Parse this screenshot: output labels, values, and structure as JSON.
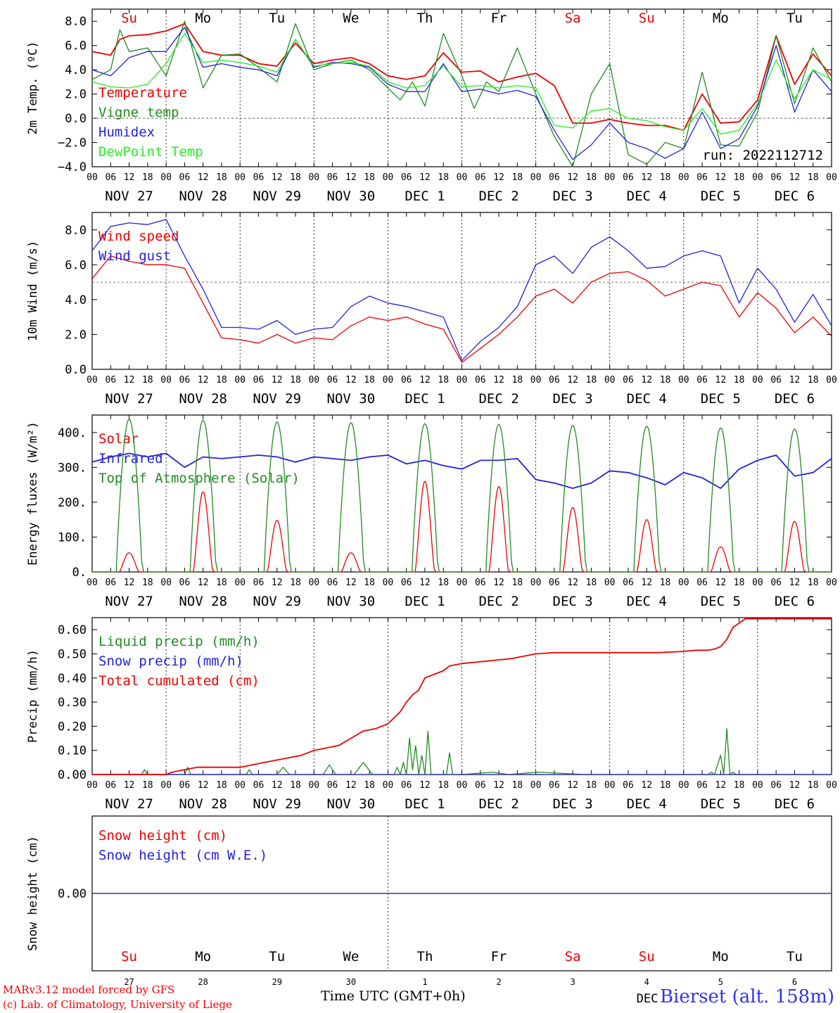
{
  "run_label": "run: 2022112712",
  "footer": {
    "model_line": "MARv3.12 model forced by GFS",
    "lab_line": "(c) Lab. of Climatology, University of Liege",
    "time_axis": "Time UTC (GMT+0h)",
    "station": "Bierset (alt. 158m)",
    "month_label": "DEC"
  },
  "day_labels": [
    {
      "name": "Su",
      "color": "#ee0000"
    },
    {
      "name": "Mo",
      "color": "#000000"
    },
    {
      "name": "Tu",
      "color": "#000000"
    },
    {
      "name": "We",
      "color": "#000000"
    },
    {
      "name": "Th",
      "color": "#000000"
    },
    {
      "name": "Fr",
      "color": "#000000"
    },
    {
      "name": "Sa",
      "color": "#ee0000"
    },
    {
      "name": "Su",
      "color": "#ee0000"
    },
    {
      "name": "Mo",
      "color": "#000000"
    },
    {
      "name": "Tu",
      "color": "#000000"
    }
  ],
  "date_labels": [
    "NOV 27",
    "NOV 28",
    "NOV 29",
    "NOV 30",
    "DEC  1",
    "DEC  2",
    "DEC  3",
    "DEC  4",
    "DEC  5",
    "DEC  6"
  ],
  "day_numbers": [
    "27",
    "28",
    "29",
    "30",
    "1",
    "2",
    "3",
    "4",
    "5",
    "6"
  ],
  "hour_ticks": [
    "00",
    "06",
    "12",
    "18"
  ],
  "chart_data": [
    {
      "type": "line",
      "ylabel": "2m Temp. (ºC)",
      "ylim": [
        -4,
        9
      ],
      "yticks": [
        "8.0",
        "6.0",
        "4.0",
        "2.0",
        "0.0",
        "−2.0",
        "−4.0"
      ],
      "ytick_values": [
        8,
        6,
        4,
        2,
        0,
        -2,
        -4
      ],
      "ref_line": 0,
      "x_hours_range": [
        0,
        240
      ],
      "series": [
        {
          "name": "Temperature",
          "color": "#ee0000",
          "x": [
            0,
            6,
            9,
            12,
            18,
            24,
            30,
            36,
            42,
            48,
            54,
            60,
            66,
            72,
            78,
            84,
            90,
            96,
            102,
            108,
            114,
            120,
            126,
            132,
            138,
            144,
            150,
            156,
            162,
            168,
            174,
            180,
            186,
            192,
            198,
            204,
            210,
            216,
            222,
            228,
            234,
            240
          ],
          "y": [
            5.5,
            5.2,
            6.5,
            6.8,
            6.9,
            7.2,
            7.8,
            5.5,
            5.2,
            5.2,
            4.5,
            4.3,
            6.2,
            4.5,
            4.8,
            5.0,
            4.5,
            3.5,
            3.2,
            3.5,
            5.4,
            3.8,
            3.9,
            3.0,
            3.4,
            3.7,
            2.7,
            -0.4,
            -0.4,
            -0.1,
            -0.4,
            -0.6,
            -0.6,
            -1.0,
            2.0,
            -0.4,
            -0.3,
            1.5,
            6.8,
            2.8,
            5.3,
            3.5
          ]
        },
        {
          "name": "Vigne temp",
          "color": "#228b22",
          "x": [
            0,
            6,
            9,
            12,
            18,
            24,
            30,
            36,
            42,
            48,
            54,
            60,
            66,
            72,
            78,
            84,
            90,
            96,
            100,
            104,
            108,
            114,
            120,
            124,
            128,
            132,
            138,
            144,
            150,
            156,
            162,
            168,
            174,
            180,
            186,
            192,
            198,
            204,
            210,
            216,
            222,
            228,
            234,
            240
          ],
          "y": [
            3.2,
            4.0,
            7.3,
            5.5,
            5.8,
            3.5,
            8.0,
            2.5,
            5.2,
            5.3,
            4.2,
            3.0,
            7.8,
            4.0,
            4.5,
            4.8,
            4.0,
            2.5,
            1.5,
            3.0,
            1.0,
            7.0,
            3.5,
            0.8,
            3.0,
            2.2,
            5.8,
            2.0,
            -1.5,
            -4.0,
            2.0,
            4.5,
            -3.0,
            -3.8,
            -2.0,
            -2.5,
            3.8,
            -2.2,
            -2.3,
            0.5,
            6.8,
            1.2,
            5.8,
            3.0
          ]
        },
        {
          "name": "Humidex",
          "color": "#2222dd",
          "x": [
            0,
            6,
            12,
            18,
            24,
            30,
            36,
            42,
            48,
            54,
            60,
            66,
            72,
            78,
            84,
            90,
            96,
            102,
            108,
            114,
            120,
            126,
            132,
            138,
            144,
            150,
            156,
            162,
            168,
            174,
            180,
            186,
            192,
            198,
            204,
            210,
            216,
            222,
            228,
            234,
            240
          ],
          "y": [
            4.0,
            3.5,
            5.0,
            5.5,
            5.5,
            7.5,
            4.2,
            4.5,
            4.2,
            4.0,
            3.5,
            6.5,
            4.2,
            4.6,
            4.5,
            4.2,
            2.8,
            2.2,
            2.2,
            4.5,
            2.2,
            2.4,
            2.0,
            2.3,
            1.8,
            -1.0,
            -3.4,
            -2.2,
            -0.4,
            -2.0,
            -2.5,
            -3.3,
            -2.5,
            0.5,
            -2.5,
            -1.7,
            1.0,
            6.0,
            0.5,
            4.0,
            2.2
          ]
        },
        {
          "name": "DewPoint Temp",
          "color": "#22ee22",
          "x": [
            0,
            6,
            12,
            18,
            24,
            30,
            36,
            42,
            48,
            54,
            60,
            66,
            72,
            78,
            84,
            90,
            96,
            102,
            108,
            114,
            120,
            126,
            132,
            138,
            144,
            150,
            156,
            162,
            168,
            174,
            180,
            186,
            192,
            198,
            204,
            210,
            216,
            222,
            228,
            234,
            240
          ],
          "y": [
            3.0,
            2.6,
            2.5,
            2.8,
            4.5,
            7.0,
            4.6,
            4.8,
            4.6,
            4.3,
            3.8,
            6.5,
            4.3,
            4.5,
            4.6,
            4.3,
            3.0,
            2.5,
            2.7,
            4.3,
            2.6,
            2.7,
            2.5,
            2.7,
            2.5,
            -0.6,
            -0.8,
            0.6,
            0.8,
            0.0,
            -0.2,
            -0.7,
            -1.0,
            0.8,
            -1.3,
            -1.0,
            1.2,
            4.8,
            1.6,
            4.0,
            3.2
          ]
        }
      ]
    },
    {
      "type": "line",
      "ylabel": "10m Wind (m/s)",
      "ylim": [
        0,
        9
      ],
      "yticks": [
        "8.0",
        "6.0",
        "4.0",
        "2.0",
        "0.0"
      ],
      "ytick_values": [
        8,
        6,
        4,
        2,
        0
      ],
      "ref_line": 5,
      "x_hours_range": [
        0,
        240
      ],
      "series": [
        {
          "name": "Wind speed",
          "color": "#ee0000",
          "x": [
            0,
            6,
            12,
            18,
            24,
            30,
            36,
            42,
            48,
            54,
            60,
            66,
            72,
            78,
            84,
            90,
            96,
            102,
            108,
            114,
            120,
            126,
            132,
            138,
            144,
            150,
            156,
            162,
            168,
            174,
            180,
            186,
            192,
            198,
            204,
            210,
            216,
            222,
            228,
            234,
            240
          ],
          "y": [
            5.2,
            6.5,
            6.2,
            6.0,
            6.0,
            5.8,
            3.8,
            1.8,
            1.7,
            1.5,
            2.0,
            1.5,
            1.8,
            1.7,
            2.5,
            3.0,
            2.8,
            3.0,
            2.6,
            2.3,
            0.4,
            1.2,
            2.0,
            3.0,
            4.2,
            4.6,
            3.8,
            5.0,
            5.5,
            5.6,
            5.1,
            4.2,
            4.6,
            5.0,
            4.8,
            3.0,
            4.4,
            3.5,
            2.1,
            3.0,
            1.9
          ]
        },
        {
          "name": "Wind gust",
          "color": "#2222dd",
          "x": [
            0,
            6,
            12,
            18,
            24,
            30,
            36,
            42,
            48,
            54,
            60,
            66,
            72,
            78,
            84,
            90,
            96,
            102,
            108,
            114,
            120,
            126,
            132,
            138,
            144,
            150,
            156,
            162,
            168,
            174,
            180,
            186,
            192,
            198,
            204,
            210,
            216,
            222,
            228,
            234,
            240
          ],
          "y": [
            6.8,
            8.2,
            8.4,
            8.3,
            8.6,
            6.5,
            4.6,
            2.4,
            2.4,
            2.3,
            2.8,
            2.0,
            2.3,
            2.4,
            3.6,
            4.2,
            3.8,
            3.6,
            3.3,
            3.0,
            0.5,
            1.6,
            2.4,
            3.6,
            6.0,
            6.5,
            5.5,
            7.0,
            7.6,
            6.8,
            5.8,
            5.9,
            6.5,
            6.8,
            6.5,
            3.8,
            5.8,
            4.6,
            2.7,
            4.3,
            2.5
          ]
        }
      ]
    },
    {
      "type": "line",
      "ylabel": "Energy fluxes (W/m²)",
      "ylim": [
        0,
        450
      ],
      "yticks": [
        "400.",
        "300.",
        "200.",
        "100.",
        "0."
      ],
      "ytick_values": [
        400,
        300,
        200,
        100,
        0
      ],
      "x_hours_range": [
        0,
        240
      ],
      "series": [
        {
          "name": "Solar",
          "color": "#ee0000",
          "peaks": [
            55,
            230,
            148,
            55,
            260,
            245,
            185,
            150,
            72,
            145
          ]
        },
        {
          "name": "Infrared",
          "color": "#2222dd",
          "x": [
            0,
            6,
            12,
            18,
            24,
            30,
            36,
            42,
            48,
            54,
            60,
            66,
            72,
            78,
            84,
            90,
            96,
            102,
            108,
            114,
            120,
            126,
            132,
            138,
            144,
            150,
            156,
            162,
            168,
            174,
            180,
            186,
            192,
            198,
            204,
            210,
            216,
            222,
            228,
            234,
            240
          ],
          "y": [
            315,
            330,
            340,
            330,
            340,
            300,
            330,
            325,
            330,
            335,
            330,
            315,
            330,
            325,
            320,
            330,
            335,
            310,
            320,
            305,
            295,
            320,
            320,
            325,
            265,
            255,
            240,
            255,
            290,
            285,
            270,
            250,
            285,
            270,
            240,
            295,
            320,
            335,
            275,
            285,
            325
          ]
        },
        {
          "name": "Top of Atmosphere (Solar)",
          "color": "#228b22",
          "peaks": [
            438,
            435,
            430,
            428,
            425,
            423,
            420,
            418,
            413,
            410
          ]
        }
      ]
    },
    {
      "type": "line",
      "ylabel": "Precip (mm/h)",
      "ylim": [
        0,
        0.65
      ],
      "yticks": [
        "0.60",
        "0.50",
        "0.40",
        "0.30",
        "0.20",
        "0.10",
        "0.00"
      ],
      "ytick_values": [
        0.6,
        0.5,
        0.4,
        0.3,
        0.2,
        0.1,
        0.0
      ],
      "x_hours_range": [
        0,
        240
      ],
      "series": [
        {
          "name": "Liquid precip (mm/h)",
          "color": "#228b22",
          "x": [
            0,
            16,
            17,
            18,
            30,
            31,
            32,
            50,
            51,
            52,
            60,
            62,
            64,
            75,
            77,
            79,
            85,
            88,
            91,
            98,
            99,
            100,
            101,
            102,
            103,
            104,
            105,
            106,
            107,
            108,
            109,
            110,
            111,
            112,
            113,
            114,
            115,
            116,
            117,
            120,
            130,
            135,
            145,
            160,
            180,
            200,
            201,
            202,
            203,
            204,
            205,
            206,
            207,
            208,
            209,
            210,
            240
          ],
          "y": [
            0,
            0,
            0.02,
            0,
            0,
            0.03,
            0,
            0,
            0.02,
            0,
            0,
            0.03,
            0,
            0,
            0.04,
            0,
            0,
            0.05,
            0,
            0,
            0.03,
            0,
            0.05,
            0,
            0.15,
            0.02,
            0.12,
            0,
            0.08,
            0,
            0.18,
            0,
            0,
            0,
            0,
            0,
            0,
            0.09,
            0,
            0,
            0.01,
            0,
            0.01,
            0,
            0,
            0,
            0.01,
            0,
            0.04,
            0.08,
            0,
            0.19,
            0,
            0.01,
            0,
            0,
            0
          ]
        },
        {
          "name": "Snow precip (mm/h)",
          "color": "#2222dd",
          "x": [
            0,
            240
          ],
          "y": [
            0,
            0
          ]
        },
        {
          "name": "Total cumulated (cm)",
          "color": "#ee0000",
          "x": [
            0,
            24,
            26,
            30,
            34,
            48,
            52,
            56,
            60,
            64,
            68,
            72,
            76,
            80,
            84,
            88,
            92,
            96,
            100,
            102,
            104,
            106,
            108,
            110,
            112,
            114,
            116,
            120,
            124,
            128,
            132,
            136,
            140,
            144,
            150,
            156,
            160,
            168,
            176,
            184,
            192,
            196,
            200,
            202,
            204,
            206,
            208,
            212,
            220,
            230,
            240
          ],
          "y": [
            0,
            0,
            0.01,
            0.02,
            0.03,
            0.03,
            0.04,
            0.05,
            0.06,
            0.07,
            0.08,
            0.1,
            0.11,
            0.12,
            0.15,
            0.18,
            0.19,
            0.21,
            0.26,
            0.3,
            0.33,
            0.35,
            0.4,
            0.41,
            0.42,
            0.43,
            0.45,
            0.46,
            0.465,
            0.47,
            0.475,
            0.48,
            0.49,
            0.5,
            0.505,
            0.505,
            0.505,
            0.505,
            0.505,
            0.505,
            0.51,
            0.515,
            0.515,
            0.52,
            0.53,
            0.56,
            0.61,
            0.645,
            0.645,
            0.645,
            0.645
          ]
        }
      ]
    },
    {
      "type": "line",
      "ylabel": "Snow height (cm)",
      "ylim": [
        -1,
        1
      ],
      "yticks": [
        "0.00"
      ],
      "ytick_values": [
        0
      ],
      "x_hours_range": [
        0,
        240
      ],
      "series": [
        {
          "name": "Snow height (cm)",
          "color": "#ee0000",
          "x": [
            0,
            240
          ],
          "y": [
            0,
            0
          ]
        },
        {
          "name": "Snow height (cm W.E.)",
          "color": "#2222dd",
          "x": [
            0,
            240
          ],
          "y": [
            0,
            0
          ]
        }
      ]
    }
  ]
}
